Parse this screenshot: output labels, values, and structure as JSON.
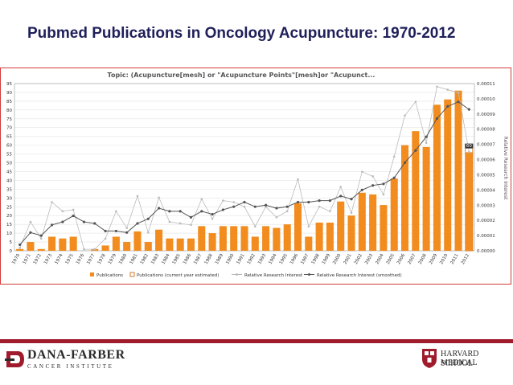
{
  "slide": {
    "title": "Pubmed Publications in Oncology Acupuncture: 1970-2012"
  },
  "chart_data": {
    "type": "bar",
    "title": "Topic: (Acupuncture[mesh] or \"Acupuncture Points\"[mesh]or \"Acupunct...",
    "categories": [
      "1970",
      "1971",
      "1972",
      "1973",
      "1974",
      "1975",
      "1976",
      "1977",
      "1978",
      "1979",
      "1980",
      "1981",
      "1982",
      "1983",
      "1984",
      "1985",
      "1986",
      "1987",
      "1988",
      "1989",
      "1990",
      "1991",
      "1992",
      "1993",
      "1994",
      "1995",
      "1996",
      "1997",
      "1998",
      "1999",
      "2000",
      "2001",
      "2002",
      "2003",
      "2004",
      "2005",
      "2006",
      "2007",
      "2008",
      "2009",
      "2010",
      "2011",
      "2012"
    ],
    "series": [
      {
        "name": "Publications",
        "axis": "left",
        "kind": "bar",
        "color": "#f28c1e",
        "values": [
          1,
          5,
          1,
          8,
          7,
          8,
          0,
          1,
          3,
          8,
          5,
          11,
          5,
          12,
          7,
          7,
          7,
          14,
          10,
          14,
          14,
          14,
          8,
          14,
          13,
          15,
          27,
          8,
          16,
          16,
          28,
          20,
          33,
          32,
          26,
          41,
          60,
          68,
          59,
          83,
          86,
          91,
          56
        ]
      },
      {
        "name": "Publications (current year estimated)",
        "axis": "left",
        "kind": "bar",
        "color": "#c45e00",
        "values": [
          0,
          0,
          0,
          0,
          0,
          0,
          0,
          0,
          0,
          0,
          0,
          0,
          0,
          0,
          0,
          0,
          0,
          0,
          0,
          0,
          0,
          0,
          0,
          0,
          0,
          0,
          0,
          0,
          0,
          0,
          0,
          0,
          0,
          0,
          0,
          0,
          0,
          0,
          0,
          0,
          0,
          0,
          60
        ]
      },
      {
        "name": "Relative Research Interest",
        "axis": "right",
        "kind": "line",
        "color": "#bbbbbb",
        "values": [
          2e-06,
          1.9e-05,
          8e-06,
          3.2e-05,
          2.6e-05,
          2.7e-05,
          1e-06,
          1e-06,
          8e-06,
          2.6e-05,
          1.5e-05,
          3.6e-05,
          1.2e-05,
          3.5e-05,
          1.9e-05,
          1.8e-05,
          1.7e-05,
          3.4e-05,
          2.1e-05,
          3.3e-05,
          3.2e-05,
          2.9e-05,
          1.6e-05,
          2.9e-05,
          2.2e-05,
          2.6e-05,
          4.7e-05,
          1.6e-05,
          2.9e-05,
          2.6e-05,
          4.2e-05,
          2.5e-05,
          5.2e-05,
          4.9e-05,
          3.7e-05,
          6.2e-05,
          8.9e-05,
          9.8e-05,
          7.1e-05,
          0.000108,
          0.000106,
          0.000104,
          6.5e-05
        ]
      },
      {
        "name": "Relative Research Interest (smoothed)",
        "axis": "right",
        "kind": "line",
        "color": "#555555",
        "values": [
          4e-06,
          1.2e-05,
          1e-05,
          1.7e-05,
          1.9e-05,
          2.3e-05,
          1.9e-05,
          1.8e-05,
          1.3e-05,
          1.3e-05,
          1.2e-05,
          1.8e-05,
          2.1e-05,
          2.8e-05,
          2.6e-05,
          2.6e-05,
          2.2e-05,
          2.6e-05,
          2.4e-05,
          2.7e-05,
          2.9e-05,
          3.2e-05,
          2.9e-05,
          3e-05,
          2.8e-05,
          2.9e-05,
          3.2e-05,
          3.2e-05,
          3.3e-05,
          3.3e-05,
          3.6e-05,
          3.4e-05,
          4e-05,
          4.3e-05,
          4.4e-05,
          4.8e-05,
          5.8e-05,
          6.6e-05,
          7.5e-05,
          8.7e-05,
          9.5e-05,
          9.8e-05,
          9.3e-05
        ]
      }
    ],
    "y_left": {
      "min": 0,
      "max": 95,
      "step": 5
    },
    "y_right": {
      "min": 0,
      "max": 0.00011,
      "ticks": [
        "0.00000",
        "0.00001",
        "0.00002",
        "0.00003",
        "0.00004",
        "0.00005",
        "0.00006",
        "0.00007",
        "0.00008",
        "0.00009",
        "0.00010",
        "0.00011"
      ],
      "label": "Relative Research Interest"
    },
    "x_label": "",
    "legend": [
      "Publications",
      "Publications (current year estimated)",
      "Relative Research Interest",
      "Relative Research Interest (smoothed)"
    ],
    "legend_position": "bottom",
    "end_label": "60",
    "grid": true
  },
  "footer": {
    "left_name": "DANA-FARBER",
    "left_sub": "CANCER INSTITUTE",
    "right_line1": "HARVARD MEDICAL",
    "right_line2": "SCHOOL"
  },
  "colors": {
    "title": "#1f1f5a",
    "accent": "#a01c2c",
    "bar": "#f28c1e"
  }
}
